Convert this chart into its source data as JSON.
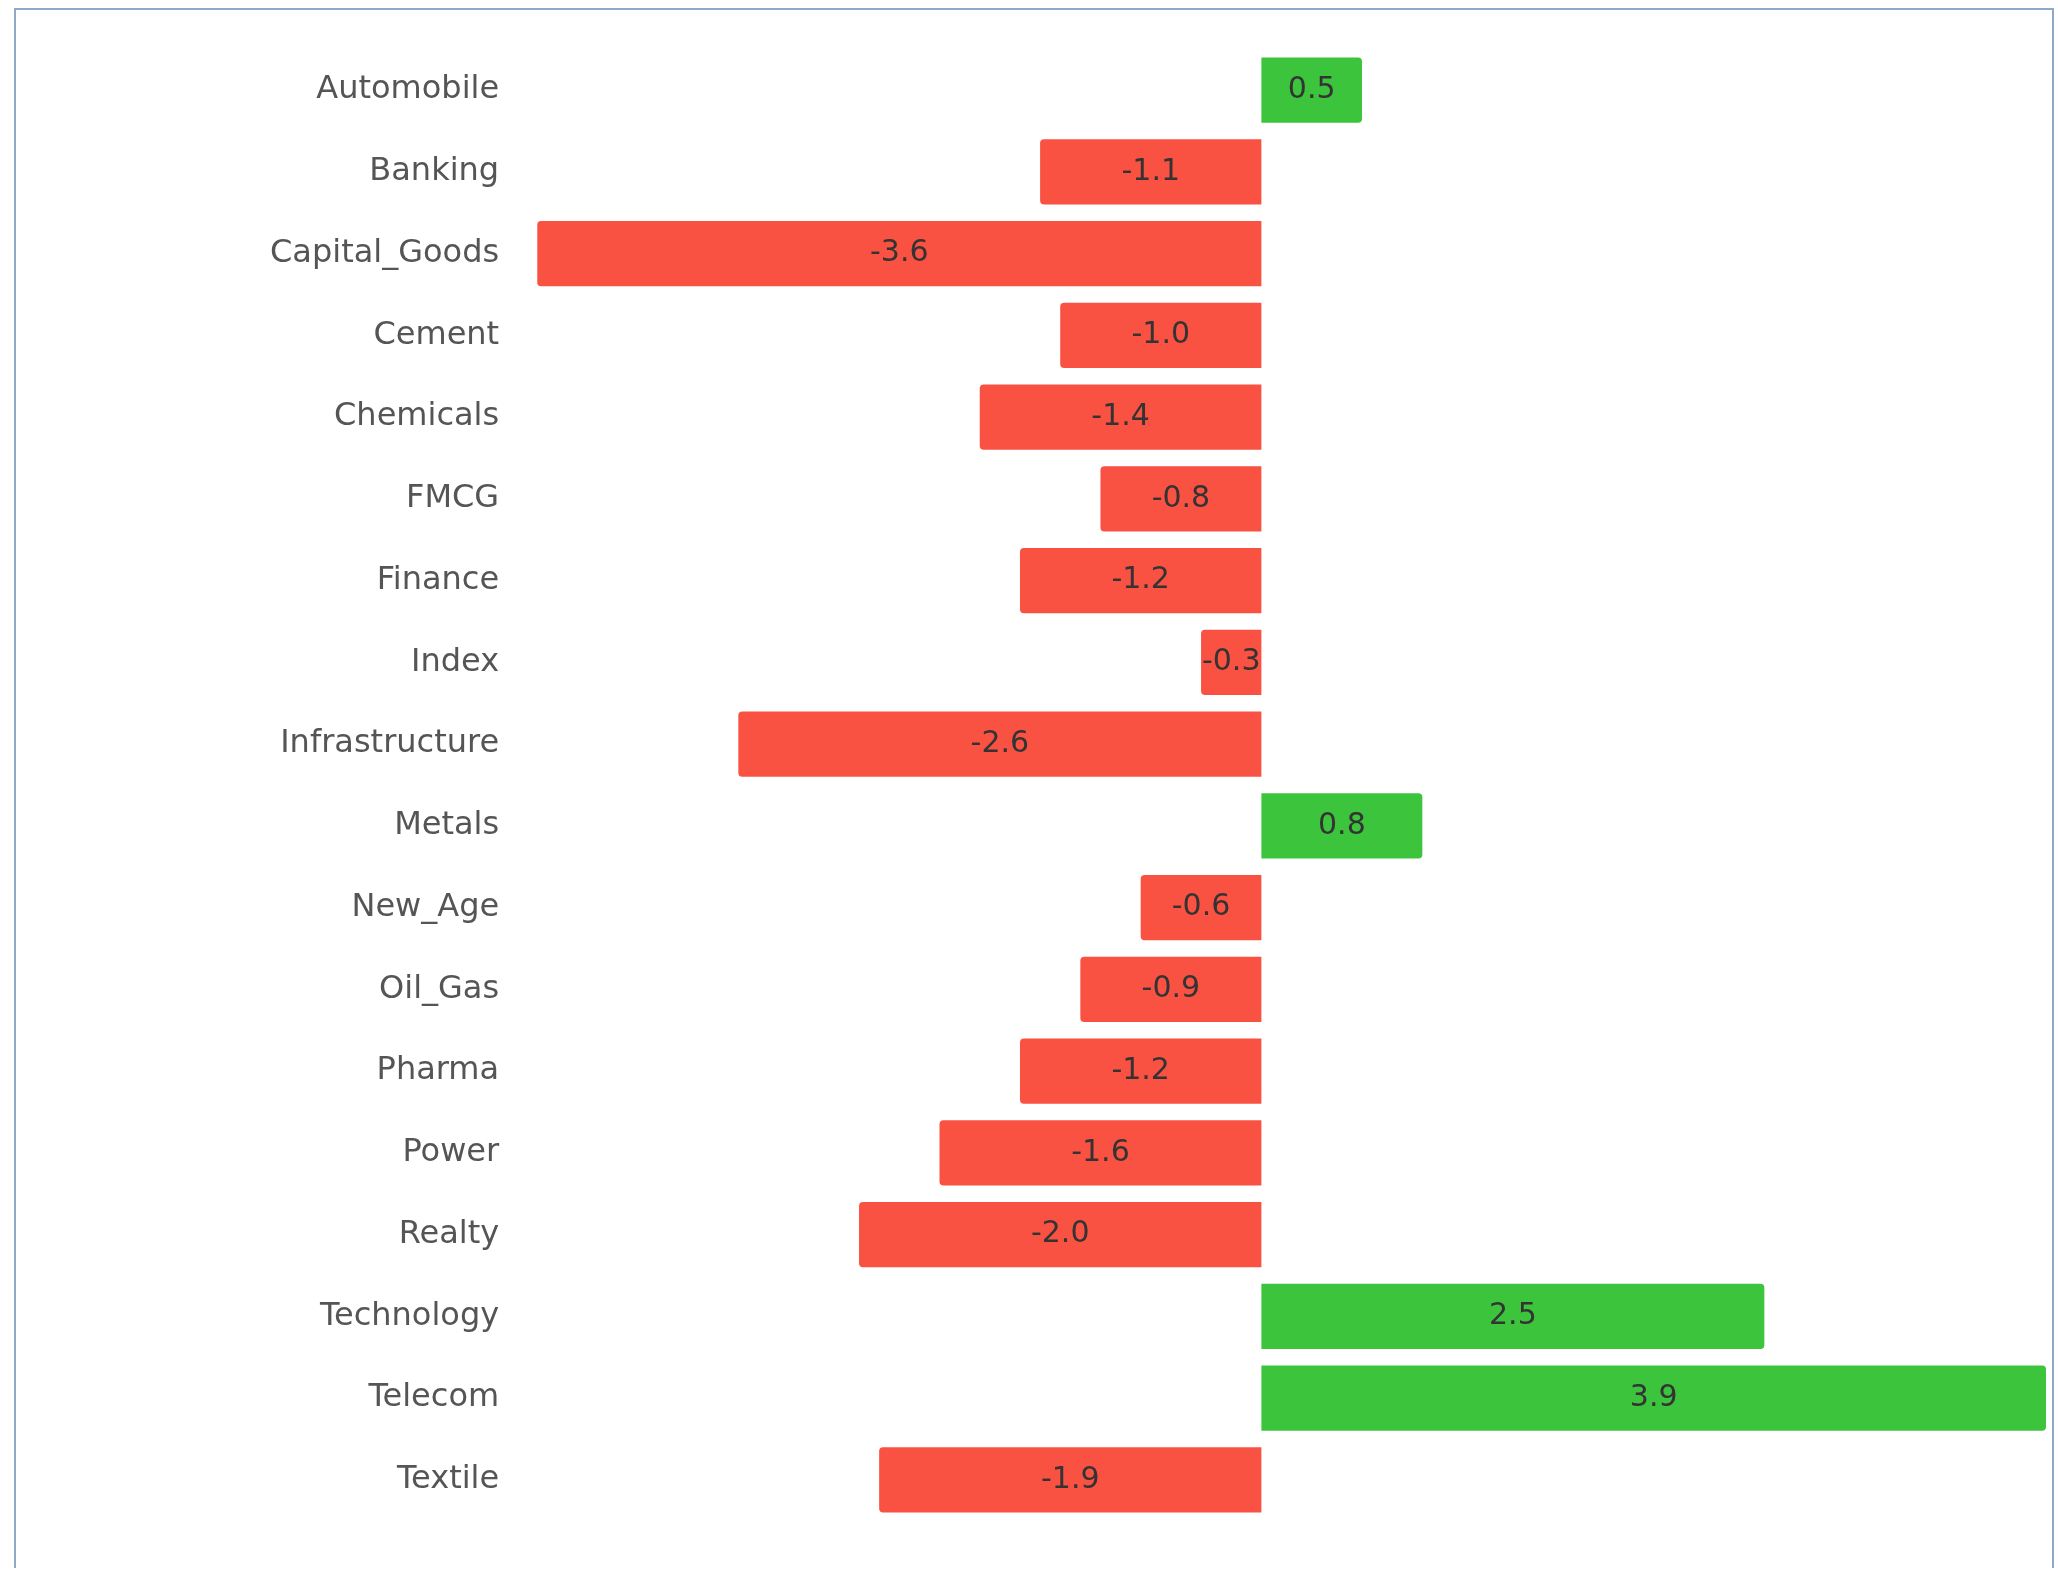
{
  "chart_data": {
    "type": "bar",
    "orientation": "horizontal",
    "categories": [
      "Automobile",
      "Banking",
      "Capital_Goods",
      "Cement",
      "Chemicals",
      "FMCG",
      "Finance",
      "Index",
      "Infrastructure",
      "Metals",
      "New_Age",
      "Oil_Gas",
      "Pharma",
      "Power",
      "Realty",
      "Technology",
      "Telecom",
      "Textile"
    ],
    "values": [
      0.5,
      -1.1,
      -3.6,
      -1.0,
      -1.4,
      -0.8,
      -1.2,
      -0.3,
      -2.6,
      0.8,
      -0.6,
      -0.9,
      -1.2,
      -1.6,
      -2.0,
      2.5,
      3.9,
      -1.9
    ],
    "colors": [
      "#3cc43c",
      "#fa5242",
      "#fa5242",
      "#fa5242",
      "#fa5242",
      "#fa5242",
      "#fa5242",
      "#fa5242",
      "#fa5242",
      "#3cc43c",
      "#fa5242",
      "#fa5242",
      "#fa5242",
      "#fa5242",
      "#fa5242",
      "#3cc43c",
      "#3cc43c",
      "#fa5242"
    ],
    "value_labels": [
      "0.5",
      "-1.1",
      "-3.6",
      "-1.0",
      "-1.4",
      "-0.8",
      "-1.2",
      "-0.3",
      "-2.6",
      "0.8",
      "-0.6",
      "-0.9",
      "-1.2",
      "-1.6",
      "-2.0",
      "2.5",
      "3.9",
      "-1.9"
    ]
  }
}
